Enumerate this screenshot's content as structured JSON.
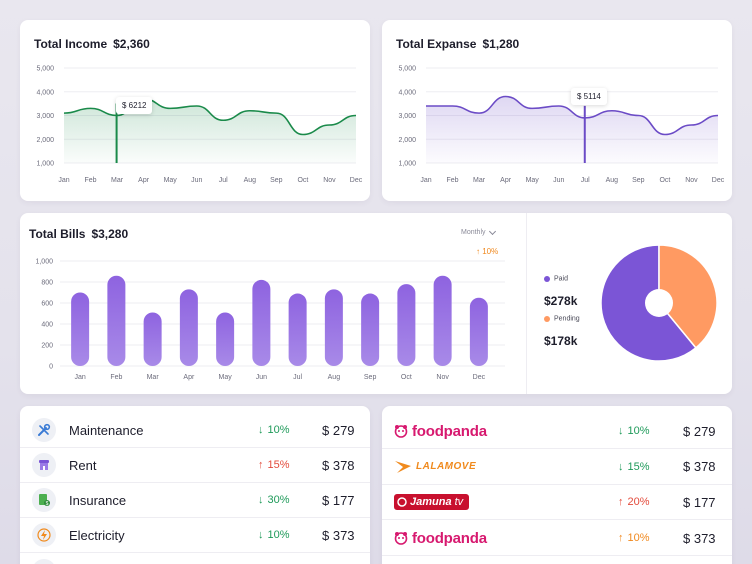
{
  "income": {
    "title": "Total Income",
    "amount": "$2,360",
    "tooltip": "$ 6212",
    "color": "#1a8a4a",
    "y_ticks": [
      "5,000",
      "4,000",
      "3,000",
      "2,000",
      "1,000"
    ],
    "months": [
      "Jan",
      "Feb",
      "Mar",
      "Apr",
      "May",
      "Jun",
      "Jul",
      "Aug",
      "Sep",
      "Oct",
      "Nov",
      "Dec"
    ]
  },
  "expense": {
    "title": "Total Expanse",
    "amount": "$1,280",
    "tooltip": "$ 5114",
    "color": "#6b4bc6",
    "y_ticks": [
      "5,000",
      "4,000",
      "3,000",
      "2,000",
      "1,000"
    ],
    "months": [
      "Jan",
      "Feb",
      "Mar",
      "Apr",
      "May",
      "Jun",
      "Jul",
      "Aug",
      "Sep",
      "Oct",
      "Nov",
      "Dec"
    ]
  },
  "bills": {
    "title": "Total Bills",
    "amount": "$3,280",
    "period": "Monthly",
    "change": "10%",
    "y_ticks": [
      "1,000",
      "800",
      "600",
      "400",
      "200",
      "0"
    ],
    "paid_label": "Paid",
    "paid_value": "$278k",
    "pending_label": "Pending",
    "pending_value": "$178k",
    "paid_color": "#7b55d6",
    "pending_color": "#ff9a62"
  },
  "chart_data": [
    {
      "type": "area",
      "title": "Total Income",
      "categories": [
        "Jan",
        "Feb",
        "Mar",
        "Apr",
        "May",
        "Jun",
        "Jul",
        "Aug",
        "Sep",
        "Oct",
        "Nov",
        "Dec"
      ],
      "values": [
        3100,
        3300,
        3000,
        3700,
        3300,
        3400,
        2800,
        3200,
        3100,
        2200,
        2600,
        3000
      ],
      "ylim": [
        1000,
        5000
      ]
    },
    {
      "type": "area",
      "title": "Total Expanse",
      "categories": [
        "Jan",
        "Feb",
        "Mar",
        "Apr",
        "May",
        "Jun",
        "Jul",
        "Aug",
        "Sep",
        "Oct",
        "Nov",
        "Dec"
      ],
      "values": [
        3400,
        3400,
        3100,
        3800,
        3300,
        3400,
        2900,
        3200,
        3000,
        2200,
        2600,
        3000
      ],
      "ylim": [
        1000,
        5000
      ]
    },
    {
      "type": "bar",
      "title": "Total Bills",
      "categories": [
        "Jan",
        "Feb",
        "Mar",
        "Apr",
        "May",
        "Jun",
        "Jul",
        "Aug",
        "Sep",
        "Oct",
        "Nov",
        "Dec"
      ],
      "values": [
        700,
        860,
        510,
        730,
        510,
        820,
        690,
        730,
        690,
        780,
        860,
        650
      ],
      "ylim": [
        0,
        1000
      ]
    },
    {
      "type": "pie",
      "categories": [
        "Paid",
        "Pending"
      ],
      "values": [
        278,
        178
      ]
    }
  ],
  "expenses_list": [
    {
      "name": "Maintenance",
      "icon": "tools-icon",
      "pct": "10%",
      "dir": "down",
      "amount": "$ 279"
    },
    {
      "name": "Rent",
      "icon": "store-icon",
      "pct": "15%",
      "dir": "up",
      "amount": "$ 378"
    },
    {
      "name": "Insurance",
      "icon": "insurance-icon",
      "pct": "30%",
      "dir": "down",
      "amount": "$ 177"
    },
    {
      "name": "Electricity",
      "icon": "electricity-icon",
      "pct": "10%",
      "dir": "down",
      "amount": "$ 373"
    }
  ],
  "vendors_list": [
    {
      "brand": "foodpanda",
      "pct": "10%",
      "dir": "down",
      "amount": "$ 279"
    },
    {
      "brand": "LALAMOVE",
      "pct": "15%",
      "dir": "down",
      "amount": "$ 378"
    },
    {
      "brand": "Jamuna",
      "brand_suffix": "tv",
      "pct": "20%",
      "dir": "up",
      "amount": "$ 177"
    },
    {
      "brand": "foodpanda",
      "pct": "10%",
      "dir": "up-orange",
      "amount": "$ 373"
    }
  ]
}
